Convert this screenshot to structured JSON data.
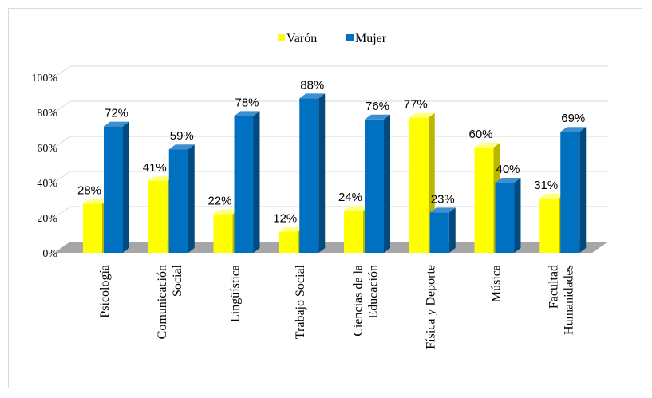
{
  "chart_data": {
    "type": "bar",
    "categories": [
      [
        "Psicología"
      ],
      [
        "Comunicación",
        "Social"
      ],
      [
        "Lingüística"
      ],
      [
        "Trabajo Social"
      ],
      [
        "Ciencias de la",
        "Educación"
      ],
      [
        "Física y Deporte"
      ],
      [
        "Música"
      ],
      [
        "Facultad",
        "Humanidades"
      ]
    ],
    "series": [
      {
        "name": "Varón",
        "values": [
          28,
          41,
          22,
          12,
          24,
          77,
          60,
          31
        ],
        "labels": [
          "28%",
          "41%",
          "22%",
          "12%",
          "24%",
          "77%",
          "60%",
          "31%"
        ]
      },
      {
        "name": "Mujer",
        "values": [
          72,
          59,
          78,
          88,
          76,
          23,
          40,
          69
        ],
        "labels": [
          "72%",
          "59%",
          "78%",
          "88%",
          "76%",
          "23%",
          "40%",
          "69%"
        ]
      }
    ],
    "y_ticks": [
      "0%",
      "20%",
      "40%",
      "60%",
      "80%",
      "100%"
    ],
    "ylim": [
      0,
      100
    ],
    "legend_position": "top",
    "grid": true,
    "colors": {
      "Varón": {
        "front": "#ffff00",
        "side": "#b8b800",
        "top": "#ffff80"
      },
      "Mujer": {
        "front": "#0070c0",
        "side": "#004a80",
        "top": "#3d8fd0"
      },
      "floor": "#a6a6a6",
      "grid": "#d9d9d9"
    }
  }
}
